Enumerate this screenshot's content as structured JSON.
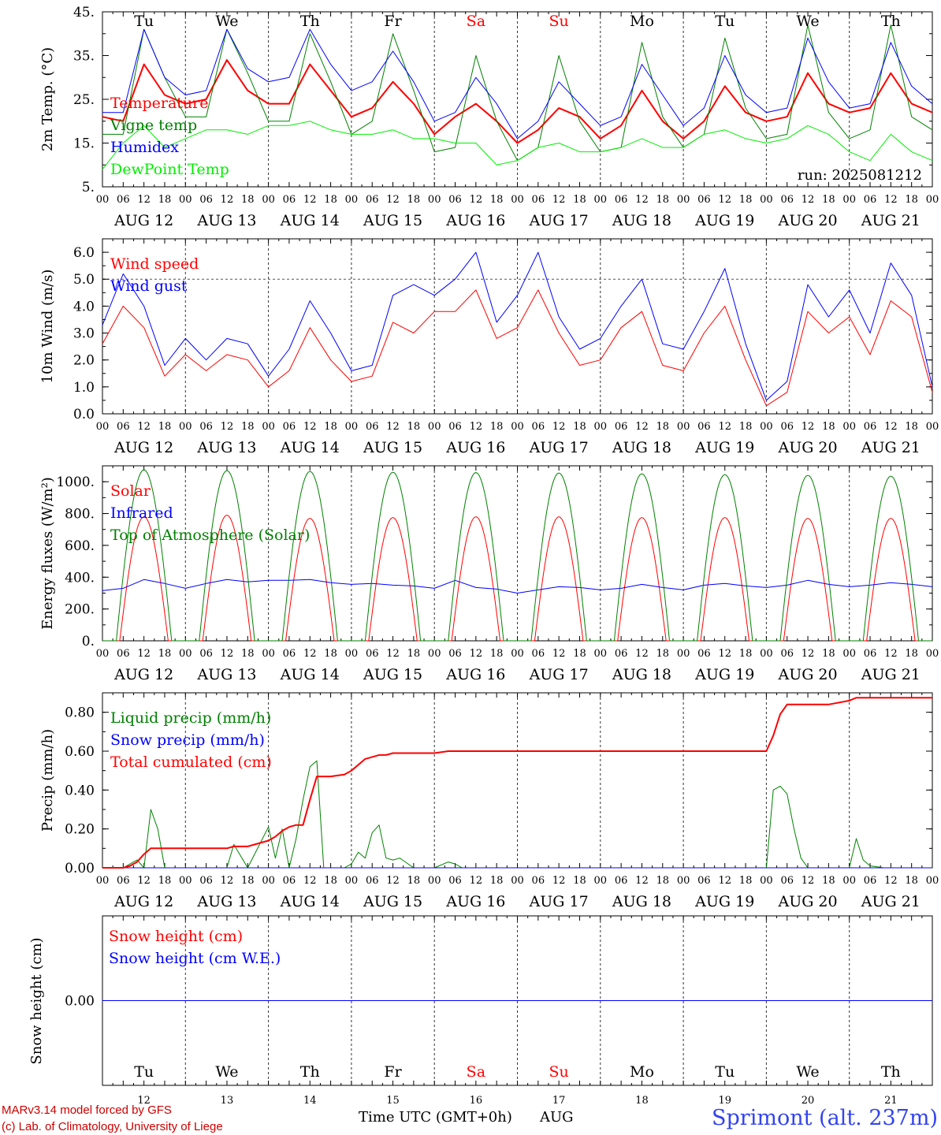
{
  "days": [
    "Tu",
    "We",
    "Th",
    "Fr",
    "Sa",
    "Su",
    "Mo",
    "Tu",
    "We",
    "Th"
  ],
  "weekend_days": [
    4,
    5
  ],
  "dates": [
    "AUG 12",
    "AUG 13",
    "AUG 14",
    "AUG 15",
    "AUG 16",
    "AUG 17",
    "AUG 18",
    "AUG 19",
    "AUG 20",
    "AUG 21"
  ],
  "day_numbers": [
    "12",
    "13",
    "14",
    "15",
    "16",
    "17",
    "18",
    "19",
    "20",
    "21"
  ],
  "hour_labels": [
    "00",
    "06",
    "12",
    "18"
  ],
  "final_hour_label": "00",
  "colors": {
    "red": "#ff0000",
    "green": "#008000",
    "blue": "#0000ff",
    "lime": "#00ee00",
    "axis": "#000000",
    "credit": "#cc0000",
    "station": "#3344ee"
  },
  "footer": {
    "credit_line1": "MARv3.14 model forced by GFS",
    "credit_line2": "(c) Lab. of Climatology, University of Liege",
    "xaxis_title": "Time UTC (GMT+0h)",
    "month": "AUG",
    "station": "Sprimont (alt. 237m)"
  },
  "chart_data": [
    {
      "id": "temp",
      "type": "line",
      "ylabel": "2m Temp. (°C)",
      "ylim": [
        5,
        45
      ],
      "ytick_values": [
        5,
        15,
        25,
        35,
        45
      ],
      "ytick_labels": [
        "5.",
        "15.",
        "25.",
        "35.",
        "45."
      ],
      "annotation": "run: 2025081212",
      "x_hours": [
        0,
        6,
        12,
        18,
        24,
        30,
        36,
        42,
        48,
        54,
        60,
        66,
        72,
        78,
        84,
        90,
        96,
        102,
        108,
        114,
        120,
        126,
        132,
        138,
        144,
        150,
        156,
        162,
        168,
        174,
        180,
        186,
        192,
        198,
        204,
        210,
        216,
        222,
        228,
        234,
        240
      ],
      "series": [
        {
          "name": "Temperature",
          "color": "red",
          "width": 2,
          "values": [
            21,
            20,
            33,
            26,
            24,
            25,
            34,
            27,
            24,
            24,
            33,
            27,
            21,
            23,
            29,
            24,
            17,
            21,
            24,
            20,
            15,
            18,
            23,
            21,
            16,
            19,
            27,
            20,
            16,
            20,
            28,
            22,
            20,
            21,
            31,
            24,
            22,
            23,
            31,
            24,
            22
          ]
        },
        {
          "name": "Vigne temp",
          "color": "green",
          "width": 1,
          "values": [
            17,
            17,
            41,
            30,
            21,
            21,
            41,
            31,
            20,
            20,
            40,
            29,
            17,
            20,
            40,
            27,
            13,
            14,
            35,
            20,
            11,
            14,
            35,
            20,
            13,
            14,
            38,
            21,
            14,
            17,
            39,
            23,
            16,
            17,
            42,
            22,
            16,
            18,
            42,
            21,
            18
          ]
        },
        {
          "name": "Humidex",
          "color": "blue",
          "width": 1,
          "values": [
            22,
            22,
            41,
            30,
            26,
            27,
            41,
            32,
            29,
            30,
            41,
            33,
            27,
            29,
            36,
            29,
            20,
            22,
            30,
            24,
            16,
            20,
            29,
            24,
            19,
            21,
            33,
            26,
            19,
            23,
            35,
            26,
            22,
            23,
            39,
            29,
            23,
            24,
            38,
            28,
            24
          ]
        },
        {
          "name": "DewPoint Temp",
          "color": "lime",
          "width": 1,
          "values": [
            9,
            15,
            19,
            14,
            16,
            18,
            18,
            17,
            19,
            19,
            20,
            18,
            17,
            17,
            18,
            16,
            16,
            15,
            15,
            10,
            11,
            14,
            15,
            13,
            13,
            14,
            16,
            14,
            14,
            17,
            18,
            16,
            15,
            16,
            19,
            17,
            13,
            11,
            17,
            13,
            11
          ]
        }
      ]
    },
    {
      "id": "wind",
      "type": "line",
      "ylabel": "10m Wind (m/s)",
      "ylim": [
        0,
        6.5
      ],
      "ytick_values": [
        0,
        1,
        2,
        3,
        4,
        5,
        6
      ],
      "ytick_labels": [
        "0.0",
        "1.0",
        "2.0",
        "3.0",
        "4.0",
        "5.0",
        "6.0"
      ],
      "reference_line": 5.0,
      "x_hours": [
        0,
        6,
        12,
        18,
        24,
        30,
        36,
        42,
        48,
        54,
        60,
        66,
        72,
        78,
        84,
        90,
        96,
        102,
        108,
        114,
        120,
        126,
        132,
        138,
        144,
        150,
        156,
        162,
        168,
        174,
        180,
        186,
        192,
        198,
        204,
        210,
        216,
        222,
        228,
        234,
        240
      ],
      "series": [
        {
          "name": "Wind speed",
          "color": "red",
          "width": 1,
          "values": [
            2.6,
            4.0,
            3.2,
            1.4,
            2.2,
            1.6,
            2.2,
            2.0,
            1.0,
            1.6,
            3.2,
            2.0,
            1.2,
            1.4,
            3.4,
            3.0,
            3.8,
            3.8,
            4.6,
            2.8,
            3.2,
            4.6,
            3.0,
            1.8,
            2.0,
            3.2,
            3.8,
            1.8,
            1.6,
            3.0,
            4.0,
            2.0,
            0.3,
            0.8,
            3.8,
            3.0,
            3.6,
            2.2,
            4.2,
            3.6,
            0.8
          ]
        },
        {
          "name": "Wind gust",
          "color": "blue",
          "width": 1,
          "values": [
            3.3,
            5.2,
            4.0,
            1.8,
            2.8,
            2.0,
            2.8,
            2.6,
            1.4,
            2.4,
            4.2,
            3.0,
            1.6,
            1.8,
            4.4,
            4.8,
            4.4,
            5.0,
            6.0,
            3.4,
            4.4,
            6.0,
            3.6,
            2.4,
            2.8,
            4.0,
            5.0,
            2.6,
            2.4,
            3.8,
            5.4,
            2.6,
            0.5,
            1.2,
            4.8,
            3.6,
            4.6,
            3.0,
            5.6,
            4.4,
            1.0
          ]
        }
      ]
    },
    {
      "id": "energy",
      "type": "line",
      "ylabel": "Energy fluxes (W/m²)",
      "ylim": [
        0,
        1100
      ],
      "ytick_values": [
        0,
        200,
        400,
        600,
        800,
        1000
      ],
      "ytick_labels": [
        "0.",
        "200.",
        "400.",
        "600.",
        "800.",
        "1000."
      ],
      "x_hours": [
        0,
        6,
        12,
        18,
        24,
        30,
        36,
        42,
        48,
        54,
        60,
        66,
        72,
        78,
        84,
        90,
        96,
        102,
        108,
        114,
        120,
        126,
        132,
        138,
        144,
        150,
        156,
        162,
        168,
        174,
        180,
        186,
        192,
        198,
        204,
        210,
        216,
        222,
        228,
        234,
        240
      ],
      "daily_peaks": {
        "Solar": [
          780,
          790,
          770,
          775,
          780,
          780,
          775,
          775,
          770,
          770
        ],
        "Top of Atmosphere (Solar)": [
          1075,
          1070,
          1065,
          1060,
          1058,
          1055,
          1050,
          1045,
          1040,
          1035
        ]
      },
      "series": [
        {
          "name": "Solar",
          "color": "red",
          "width": 1,
          "values": [
            0,
            80,
            780,
            0,
            0,
            80,
            790,
            0,
            0,
            80,
            770,
            0,
            0,
            80,
            775,
            0,
            0,
            80,
            780,
            0,
            0,
            80,
            780,
            0,
            0,
            80,
            775,
            0,
            0,
            80,
            775,
            0,
            0,
            80,
            770,
            0,
            0,
            80,
            770,
            0,
            0
          ]
        },
        {
          "name": "Infrared",
          "color": "blue",
          "width": 1,
          "values": [
            315,
            330,
            385,
            360,
            330,
            360,
            385,
            370,
            380,
            380,
            385,
            365,
            355,
            360,
            350,
            345,
            330,
            380,
            335,
            325,
            300,
            320,
            340,
            335,
            320,
            330,
            355,
            335,
            320,
            350,
            360,
            345,
            335,
            350,
            380,
            355,
            340,
            350,
            365,
            355,
            340
          ]
        },
        {
          "name": "Top of Atmosphere (Solar)",
          "color": "green",
          "width": 1,
          "values": [
            0,
            400,
            1075,
            0,
            0,
            400,
            1070,
            0,
            0,
            400,
            1065,
            0,
            0,
            400,
            1060,
            0,
            0,
            400,
            1058,
            0,
            0,
            400,
            1055,
            0,
            0,
            400,
            1050,
            0,
            0,
            400,
            1045,
            0,
            0,
            400,
            1040,
            0,
            0,
            400,
            1035,
            0,
            0
          ]
        }
      ]
    },
    {
      "id": "precip",
      "type": "line",
      "ylabel": "Precip (mm/h)",
      "ylim": [
        0,
        0.9
      ],
      "ytick_values": [
        0,
        0.2,
        0.4,
        0.6,
        0.8
      ],
      "ytick_labels": [
        "0.00",
        "0.20",
        "0.40",
        "0.60",
        "0.80"
      ],
      "x_hours": [
        0,
        6,
        8,
        10,
        12,
        14,
        16,
        18,
        24,
        30,
        36,
        38,
        42,
        48,
        50,
        52,
        54,
        56,
        58,
        60,
        62,
        64,
        66,
        70,
        72,
        74,
        76,
        78,
        80,
        82,
        84,
        86,
        90,
        96,
        100,
        102,
        104,
        108,
        120,
        168,
        192,
        194,
        196,
        198,
        200,
        202,
        204,
        210,
        216,
        218,
        220,
        222,
        226,
        240
      ],
      "series": [
        {
          "name": "Liquid precip (mm/h)",
          "color": "green",
          "width": 1,
          "values": [
            0,
            0,
            0.02,
            0.04,
            0,
            0.3,
            0.2,
            0,
            0,
            0,
            0,
            0.12,
            0,
            0.21,
            0.05,
            0.2,
            0,
            0.15,
            0.35,
            0.52,
            0.55,
            0,
            0,
            0,
            0.02,
            0.08,
            0.05,
            0.18,
            0.22,
            0.05,
            0.04,
            0.05,
            0,
            0,
            0.03,
            0.02,
            0,
            0,
            0,
            0,
            0,
            0.4,
            0.42,
            0.38,
            0.2,
            0.05,
            0,
            0,
            0,
            0.15,
            0.04,
            0.01,
            0,
            0
          ]
        },
        {
          "name": "Snow precip (mm/h)",
          "color": "blue",
          "width": 1,
          "values": [
            0,
            0,
            0,
            0,
            0,
            0,
            0,
            0,
            0,
            0,
            0,
            0,
            0,
            0,
            0,
            0,
            0,
            0,
            0,
            0,
            0,
            0,
            0,
            0,
            0,
            0,
            0,
            0,
            0,
            0,
            0,
            0,
            0,
            0,
            0,
            0,
            0,
            0,
            0,
            0,
            0,
            0,
            0,
            0,
            0,
            0,
            0,
            0,
            0,
            0,
            0,
            0,
            0,
            0
          ]
        },
        {
          "name": "Total cumulated (cm)",
          "color": "red",
          "width": 2,
          "values": [
            0,
            0,
            0.01,
            0.03,
            0.07,
            0.1,
            0.1,
            0.1,
            0.1,
            0.1,
            0.1,
            0.11,
            0.11,
            0.14,
            0.16,
            0.19,
            0.21,
            0.22,
            0.22,
            0.35,
            0.47,
            0.47,
            0.47,
            0.48,
            0.5,
            0.53,
            0.56,
            0.57,
            0.58,
            0.58,
            0.59,
            0.59,
            0.59,
            0.59,
            0.6,
            0.6,
            0.6,
            0.6,
            0.6,
            0.6,
            0.6,
            0.68,
            0.79,
            0.84,
            0.84,
            0.84,
            0.84,
            0.84,
            0.86,
            0.875,
            0.875,
            0.875,
            0.875,
            0.875
          ]
        }
      ]
    },
    {
      "id": "snow",
      "type": "line",
      "ylabel": "Snow height (cm)",
      "ylim": [
        -1,
        1
      ],
      "ytick_values": [
        0
      ],
      "ytick_labels": [
        "0.00"
      ],
      "x_hours": [
        0,
        240
      ],
      "series": [
        {
          "name": "Snow height (cm)",
          "color": "red",
          "width": 1,
          "values": [
            0,
            0
          ]
        },
        {
          "name": "Snow height (cm W.E.)",
          "color": "blue",
          "width": 1,
          "values": [
            0,
            0
          ]
        }
      ]
    }
  ]
}
